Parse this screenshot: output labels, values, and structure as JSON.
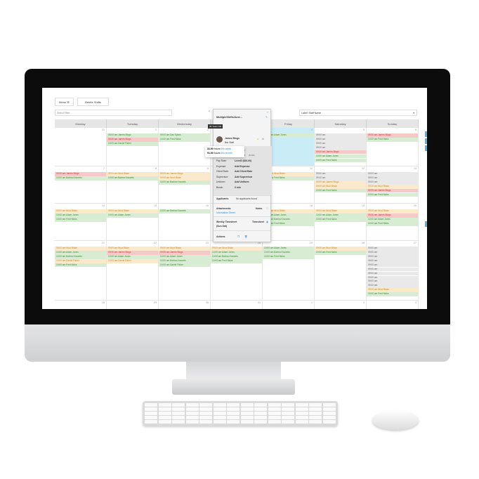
{
  "toolbar": {
    "menu_label": "Menu ☰",
    "delete_label": "Delete Shifts",
    "filter_placeholder": "Select Filter...",
    "label_select": "Label: Staff Name",
    "prev_icon": "chevron-left-icon"
  },
  "days": [
    "Monday",
    "Tuesday",
    "Wednesday",
    "Thursday",
    "Friday",
    "Saturday",
    "Sunday"
  ],
  "weeks": [
    {
      "dates": [
        "31",
        "1",
        "2",
        "3",
        "4",
        "5",
        "6"
      ],
      "shifts": [
        [],
        [
          [
            "g",
            "09:00 am James Blogs"
          ],
          [
            "r",
            "09:30 am James Blogs"
          ],
          [
            "g",
            "10:00 am Daniel Fisher"
          ]
        ],
        [
          [
            "g",
            "09:00 am Dan Sykes"
          ],
          [
            "g",
            "10:00 am Fred Nicks"
          ]
        ],
        [],
        [
          [
            "g",
            "10:00 am Adam Jones"
          ]
        ],
        [
          [
            "x",
            "09:00 am"
          ],
          [
            "x",
            "09:00 am"
          ],
          [
            "x",
            "09:00 am"
          ],
          [
            "x",
            "09:00 am"
          ],
          [
            "r",
            "09:30 am James Blogs"
          ],
          [
            "g",
            "10:00 am Adam Jones"
          ],
          [
            "g",
            "10:00 am Fred Nicks"
          ]
        ],
        [
          [
            "r",
            "09:30 am James Blogs"
          ],
          [
            "g",
            "10:00 am Fred Nicks"
          ]
        ]
      ]
    },
    {
      "dates": [
        "7",
        "8",
        "9",
        "10",
        "11",
        "12",
        "13"
      ],
      "shifts": [
        [
          [
            "r",
            "09:30 am James Blogs"
          ],
          [
            "g",
            "10:00 am Barbra Knowels"
          ]
        ],
        [
          [
            "o",
            "09:00 am Nicci Blake"
          ],
          [
            "g",
            "10:00 am Barbra Knowels"
          ]
        ],
        [
          [
            "o",
            "09:00 am James Blogs"
          ],
          [
            "o",
            "09:00 am Nicci Blake"
          ],
          [
            "g",
            "10:00 am Barbra Knowels"
          ]
        ],
        [],
        [
          [
            "o",
            "09:00 am Nicci Blake"
          ],
          [
            "g",
            "10:00 am Fred Nicks"
          ]
        ],
        [
          [
            "x",
            "09:00 am"
          ],
          [
            "x",
            "09:00 am"
          ],
          [
            "o",
            "09:00 am James Blogs"
          ],
          [
            "o",
            "09:00 am Nicci Blake"
          ],
          [
            "g",
            "10:00 am Fred Nicks"
          ]
        ],
        [
          [
            "x",
            "09:00 am"
          ],
          [
            "x",
            "09:00 am"
          ],
          [
            "x",
            "09:00 am"
          ],
          [
            "o",
            "09:00 am Nicci Blake"
          ],
          [
            "r",
            "09:30 am James Blogs"
          ],
          [
            "g",
            "10:00 am Fred Nicks"
          ]
        ]
      ]
    },
    {
      "dates": [
        "14",
        "15",
        "16",
        "17",
        "18",
        "19",
        "20"
      ],
      "shifts": [
        [
          [
            "o",
            "09:00 am Nicci Blake"
          ],
          [
            "g",
            "10:00 am Adam Jones"
          ],
          [
            "g",
            "10:00 am Fred Nicks"
          ]
        ],
        [
          [
            "o",
            "09:00 am Nicci Blake"
          ],
          [
            "g",
            "10:00 am Adam Jones"
          ]
        ],
        [
          [
            "g",
            "10:00 am Barbra Knowels"
          ]
        ],
        [],
        [
          [
            "o",
            "09:00 am Nicci Blake"
          ],
          [
            "g",
            "10:00 am Adam Jones"
          ],
          [
            "g",
            "10:00 am Barbra Knowels"
          ],
          [
            "g",
            "10:00 am Fred Nicks"
          ]
        ],
        [
          [
            "o",
            "09:00 am Nicci Blake"
          ],
          [
            "g",
            "10:00 am Adam Jones"
          ],
          [
            "g",
            "10:00 am Fred Nicks"
          ]
        ],
        [
          [
            "o",
            "09:00 am Nicci Blake"
          ],
          [
            "r",
            "09:30 am James Blogs"
          ],
          [
            "g",
            "10:00 am Adam Jones"
          ],
          [
            "g",
            "10:00 am Fred Nicks"
          ]
        ]
      ]
    },
    {
      "dates": [
        "21",
        "22",
        "23",
        "24",
        "25",
        "26",
        "27"
      ],
      "shifts": [
        [
          [
            "o",
            "09:00 am Nicci Blake"
          ],
          [
            "g",
            "10:00 am Adam Jones"
          ],
          [
            "g",
            "10:00 am Barbra Knowels"
          ],
          [
            "o",
            "10:00 am Daniel Fisher"
          ],
          [
            "g",
            "10:00 am Fred Nicks"
          ]
        ],
        [
          [
            "o",
            "09:00 am Nicci Blake"
          ],
          [
            "r",
            "09:30 am James Blogs"
          ],
          [
            "g",
            "10:00 am Adam Jones"
          ],
          [
            "o",
            "10:00 am Daniel Fisher"
          ]
        ],
        [
          [
            "o",
            "09:00 am Nicci Blake"
          ],
          [
            "r",
            "09:30 am James Blogs"
          ],
          [
            "g",
            "10:00 am Adam Jones"
          ],
          [
            "g",
            "10:00 am Barbra Knowels"
          ],
          [
            "g",
            "10:00 am Daniel Fisher"
          ]
        ],
        [
          [
            "o",
            "09:00 am Nicci Blake"
          ],
          [
            "g",
            "10:00 am Adam Jones"
          ],
          [
            "g",
            "10:00 am Barbra Knowels"
          ],
          [
            "g",
            "10:00 am Fred Nicks"
          ]
        ],
        [
          [
            "g",
            "10:00 am Adam Jones"
          ],
          [
            "g",
            "10:00 am Barbra Knowels"
          ],
          [
            "g",
            "10:00 am Fred Nicks"
          ]
        ],
        [
          [
            "o",
            "09:00 am Nicci Blake"
          ],
          [
            "g",
            "10:00 am Fred Nicks"
          ]
        ],
        [
          [
            "x",
            "09:00 am"
          ],
          [
            "x",
            "09:00 am"
          ],
          [
            "x",
            "09:00 am"
          ],
          [
            "x",
            "09:00 am"
          ],
          [
            "x",
            "09:00 am"
          ],
          [
            "x",
            "09:00 am"
          ],
          [
            "x",
            "09:00 am"
          ],
          [
            "x",
            "09:00 am"
          ],
          [
            "x",
            "09:00 am"
          ],
          [
            "x",
            "09:00 am"
          ],
          [
            "o",
            "09:00 am Nicci Blake"
          ],
          [
            "g",
            "10:00 am Fred Nicks"
          ]
        ]
      ]
    },
    {
      "dates": [
        "28",
        "29",
        "30",
        "31",
        "1",
        "2",
        "3"
      ],
      "shifts": [
        [],
        [],
        [],
        [],
        [],
        [],
        []
      ]
    }
  ],
  "popup": {
    "title": "MultipleShiftsJune...",
    "age_tooltip": "36 Years Old",
    "staff_name": "James Blogs",
    "staff_role": "Bar Staff",
    "hours_week": "31.00",
    "hours_week_label": "hours",
    "hours_week_link": "this week",
    "hours_month": "91.00",
    "hours_month_label": "hours",
    "hours_month_link": "this month",
    "start": "09:00 am",
    "end": "05:00 pm",
    "duration": "(8.00h)",
    "fields": [
      [
        "Pay Rate:",
        "Level2 ($20.00)"
      ],
      [
        "Expense:",
        "Add Expense"
      ],
      [
        "Client Rate:",
        "Add Client Rate"
      ],
      [
        "Supervisor:",
        "Add Supervisor"
      ],
      [
        "Uniform:",
        "Add Uniform"
      ],
      [
        "Break:",
        "0 min"
      ]
    ],
    "applicants_label": "Applicants",
    "applicants_value": "No applicants found",
    "attachments_label": "Attachments",
    "notes_label": "Notes",
    "info_sheet": "Information Sheet",
    "weekly_label": "Weekly Timesheet",
    "weekly_range": "(Sun-Sat)",
    "timesheet_label": "Timesheet",
    "actions_label": "Actions"
  }
}
